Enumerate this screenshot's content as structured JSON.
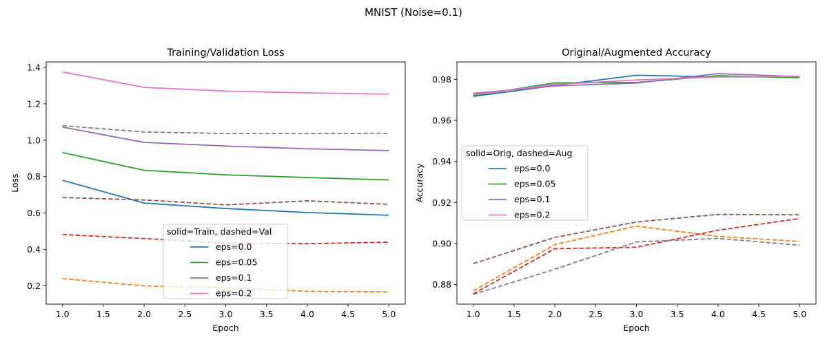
{
  "figure": {
    "suptitle": "MNIST (Noise=0.1)"
  },
  "chart_data": [
    {
      "type": "line",
      "title": "Training/Validation Loss",
      "xlabel": "Epoch",
      "ylabel": "Loss",
      "xlim": [
        0.8,
        5.2
      ],
      "ylim": [
        0.1,
        1.43
      ],
      "x_ticks": [
        1.0,
        1.5,
        2.0,
        2.5,
        3.0,
        3.5,
        4.0,
        4.5,
        5.0
      ],
      "y_ticks": [
        0.2,
        0.4,
        0.6,
        0.8,
        1.0,
        1.2,
        1.4
      ],
      "x_tick_labels": [
        "1.0",
        "1.5",
        "2.0",
        "2.5",
        "3.0",
        "3.5",
        "4.0",
        "4.5",
        "5.0"
      ],
      "y_tick_labels": [
        "0.2",
        "0.4",
        "0.6",
        "0.8",
        "1.0",
        "1.2",
        "1.4"
      ],
      "grid": false,
      "legend": {
        "title": "solid=Train, dashed=Val",
        "placement": "lower-center",
        "entries": [
          {
            "label": "eps=0.0",
            "color": "#1f77b4"
          },
          {
            "label": "eps=0.05",
            "color": "#2ca02c"
          },
          {
            "label": "eps=0.1",
            "color": "#9467bd"
          },
          {
            "label": "eps=0.2",
            "color": "#e377c2"
          }
        ]
      },
      "x": [
        1,
        2,
        3,
        4,
        5
      ],
      "series": [
        {
          "style": "solid",
          "color": "#1f77b4",
          "values": [
            0.78,
            0.655,
            0.625,
            0.603,
            0.588
          ]
        },
        {
          "style": "solid",
          "color": "#2ca02c",
          "values": [
            0.932,
            0.835,
            0.81,
            0.795,
            0.782
          ]
        },
        {
          "style": "solid",
          "color": "#9467bd",
          "values": [
            1.072,
            0.988,
            0.968,
            0.953,
            0.943
          ]
        },
        {
          "style": "solid",
          "color": "#e377c2",
          "values": [
            1.375,
            1.29,
            1.27,
            1.26,
            1.253
          ]
        },
        {
          "style": "dashed",
          "color": "#ff7f0e",
          "values": [
            0.24,
            0.2,
            0.19,
            0.17,
            0.167
          ]
        },
        {
          "style": "dashed",
          "color": "#d62728",
          "values": [
            0.482,
            0.46,
            0.435,
            0.432,
            0.44
          ]
        },
        {
          "style": "dashed",
          "color": "#8c564b",
          "values": [
            0.685,
            0.672,
            0.645,
            0.667,
            0.648
          ]
        },
        {
          "style": "dashed",
          "color": "#7f7f7f",
          "values": [
            1.08,
            1.045,
            1.037,
            1.037,
            1.038
          ]
        }
      ]
    },
    {
      "type": "line",
      "title": "Original/Augmented Accuracy",
      "xlabel": "Epoch",
      "ylabel": "Accuracy",
      "xlim": [
        0.8,
        5.2
      ],
      "ylim": [
        0.8705,
        0.9885
      ],
      "x_ticks": [
        1.0,
        1.5,
        2.0,
        2.5,
        3.0,
        3.5,
        4.0,
        4.5,
        5.0
      ],
      "y_ticks": [
        0.88,
        0.9,
        0.92,
        0.94,
        0.96,
        0.98
      ],
      "x_tick_labels": [
        "1.0",
        "1.5",
        "2.0",
        "2.5",
        "3.0",
        "3.5",
        "4.0",
        "4.5",
        "5.0"
      ],
      "y_tick_labels": [
        "0.88",
        "0.90",
        "0.92",
        "0.94",
        "0.96",
        "0.98"
      ],
      "grid": false,
      "legend": {
        "title": "solid=Orig, dashed=Aug",
        "placement": "center-left",
        "entries": [
          {
            "label": "eps=0.0",
            "color": "#1f77b4"
          },
          {
            "label": "eps=0.05",
            "color": "#2ca02c"
          },
          {
            "label": "eps=0.1",
            "color": "#9467bd"
          },
          {
            "label": "eps=0.2",
            "color": "#e377c2"
          }
        ]
      },
      "x": [
        1,
        2,
        3,
        4,
        5
      ],
      "series": [
        {
          "style": "solid",
          "color": "#1f77b4",
          "values": [
            0.9717,
            0.977,
            0.982,
            0.9812,
            0.9812
          ]
        },
        {
          "style": "solid",
          "color": "#2ca02c",
          "values": [
            0.9721,
            0.9783,
            0.9785,
            0.9818,
            0.9808
          ]
        },
        {
          "style": "solid",
          "color": "#9467bd",
          "values": [
            0.9732,
            0.9768,
            0.9782,
            0.9828,
            0.9813
          ]
        },
        {
          "style": "solid",
          "color": "#e377c2",
          "values": [
            0.9726,
            0.9775,
            0.9797,
            0.9812,
            0.9815
          ]
        },
        {
          "style": "dashed",
          "color": "#ff7f0e",
          "values": [
            0.877,
            0.8995,
            0.9085,
            0.9035,
            0.901
          ]
        },
        {
          "style": "dashed",
          "color": "#d62728",
          "values": [
            0.8755,
            0.8975,
            0.8982,
            0.9065,
            0.9122
          ]
        },
        {
          "style": "dashed",
          "color": "#8c564b",
          "values": [
            0.8902,
            0.903,
            0.9105,
            0.9142,
            0.914
          ]
        },
        {
          "style": "dashed",
          "color": "#7f7f7f",
          "values": [
            0.8752,
            0.8875,
            0.9008,
            0.9025,
            0.8992
          ]
        }
      ]
    }
  ]
}
